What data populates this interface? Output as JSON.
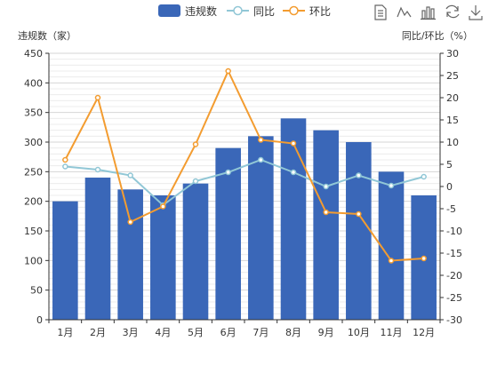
{
  "chart_data": {
    "type": "bar",
    "categories": [
      "1月",
      "2月",
      "3月",
      "4月",
      "5月",
      "6月",
      "7月",
      "8月",
      "9月",
      "10月",
      "11月",
      "12月"
    ],
    "series": [
      {
        "name": "违规数",
        "type": "bar",
        "axis": "left",
        "color": "#3a67b8",
        "values": [
          200,
          240,
          220,
          210,
          230,
          290,
          310,
          340,
          320,
          300,
          250,
          210
        ]
      },
      {
        "name": "同比",
        "type": "line",
        "axis": "right",
        "color": "#91c7d6",
        "values": [
          4.5,
          3.8,
          2.5,
          -4.2,
          1.2,
          3.2,
          6.0,
          3.2,
          0.0,
          2.5,
          0.2,
          2.2
        ]
      },
      {
        "name": "环比",
        "type": "line",
        "axis": "right",
        "color": "#f39c30",
        "values": [
          6.0,
          20.0,
          -8.0,
          -4.5,
          9.5,
          26.0,
          10.5,
          9.7,
          -5.8,
          -6.2,
          -16.7,
          -16.2
        ]
      }
    ],
    "ylabel": "违规数（家）",
    "ylabel_right": "同比/环比（%）",
    "ylim": [
      0,
      450
    ],
    "ylim_right": [
      -30,
      30
    ],
    "yticks": [
      "0",
      "50",
      "100",
      "150",
      "200",
      "250",
      "300",
      "350",
      "400",
      "450"
    ],
    "yticks_right": [
      "-30",
      "-25",
      "-20",
      "-15",
      "-10",
      "-5",
      "0",
      "5",
      "10",
      "15",
      "20",
      "25",
      "30"
    ],
    "grid": true,
    "legend": "top-center"
  },
  "toolbox": [
    "data-view-icon",
    "line-chart-icon",
    "bar-chart-icon",
    "restore-icon",
    "save-image-icon"
  ]
}
